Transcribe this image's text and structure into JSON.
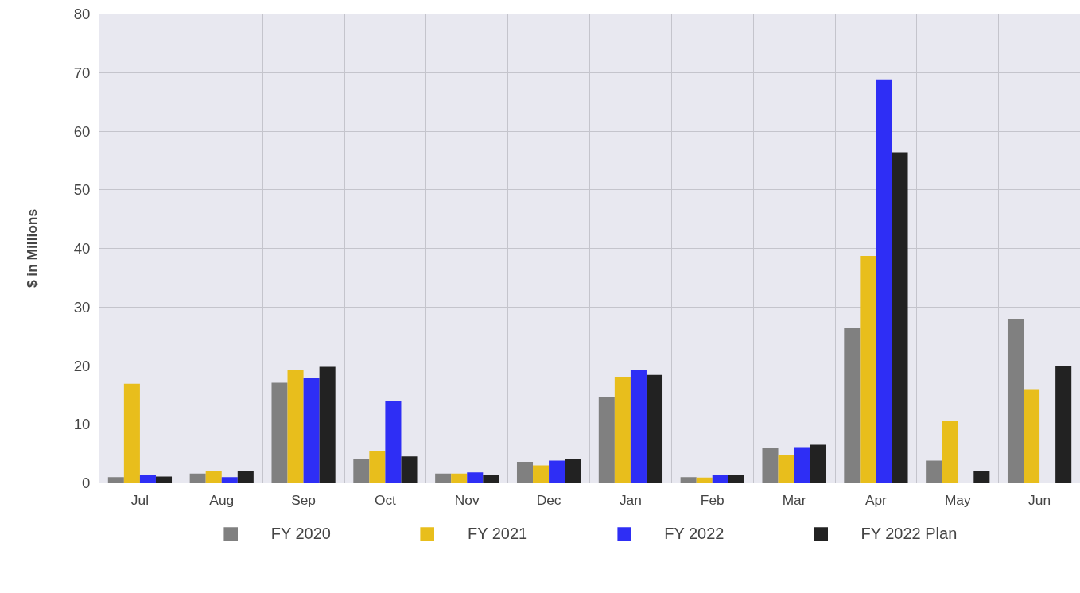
{
  "chart_data": {
    "type": "bar",
    "ylabel": "$ in Millions",
    "categories": [
      "Jul",
      "Aug",
      "Sep",
      "Oct",
      "Nov",
      "Dec",
      "Jan",
      "Feb",
      "Mar",
      "Apr",
      "May",
      "Jun"
    ],
    "series": [
      {
        "name": "FY 2020",
        "color": "#808080",
        "values": [
          1.0,
          1.6,
          17.1,
          4.0,
          1.6,
          3.6,
          14.6,
          1.0,
          5.9,
          26.4,
          3.8,
          28.0
        ]
      },
      {
        "name": "FY 2021",
        "color": "#e8be1c",
        "values": [
          16.9,
          2.0,
          19.2,
          5.5,
          1.6,
          3.0,
          18.1,
          0.9,
          4.7,
          38.7,
          10.5,
          16.0
        ]
      },
      {
        "name": "FY 2022",
        "color": "#2e2ef5",
        "values": [
          1.4,
          1.0,
          17.9,
          13.9,
          1.8,
          3.8,
          19.3,
          1.4,
          6.1,
          68.7,
          null,
          null
        ]
      },
      {
        "name": "FY 2022 Plan",
        "color": "#222222",
        "values": [
          1.1,
          2.0,
          19.8,
          4.5,
          1.3,
          4.0,
          18.4,
          1.4,
          6.5,
          56.4,
          2.0,
          20.0
        ]
      }
    ],
    "ylim": [
      0,
      80
    ],
    "yticks": [
      0,
      10,
      20,
      30,
      40,
      50,
      60,
      70,
      80
    ],
    "grid": true,
    "legend": "bottom"
  }
}
